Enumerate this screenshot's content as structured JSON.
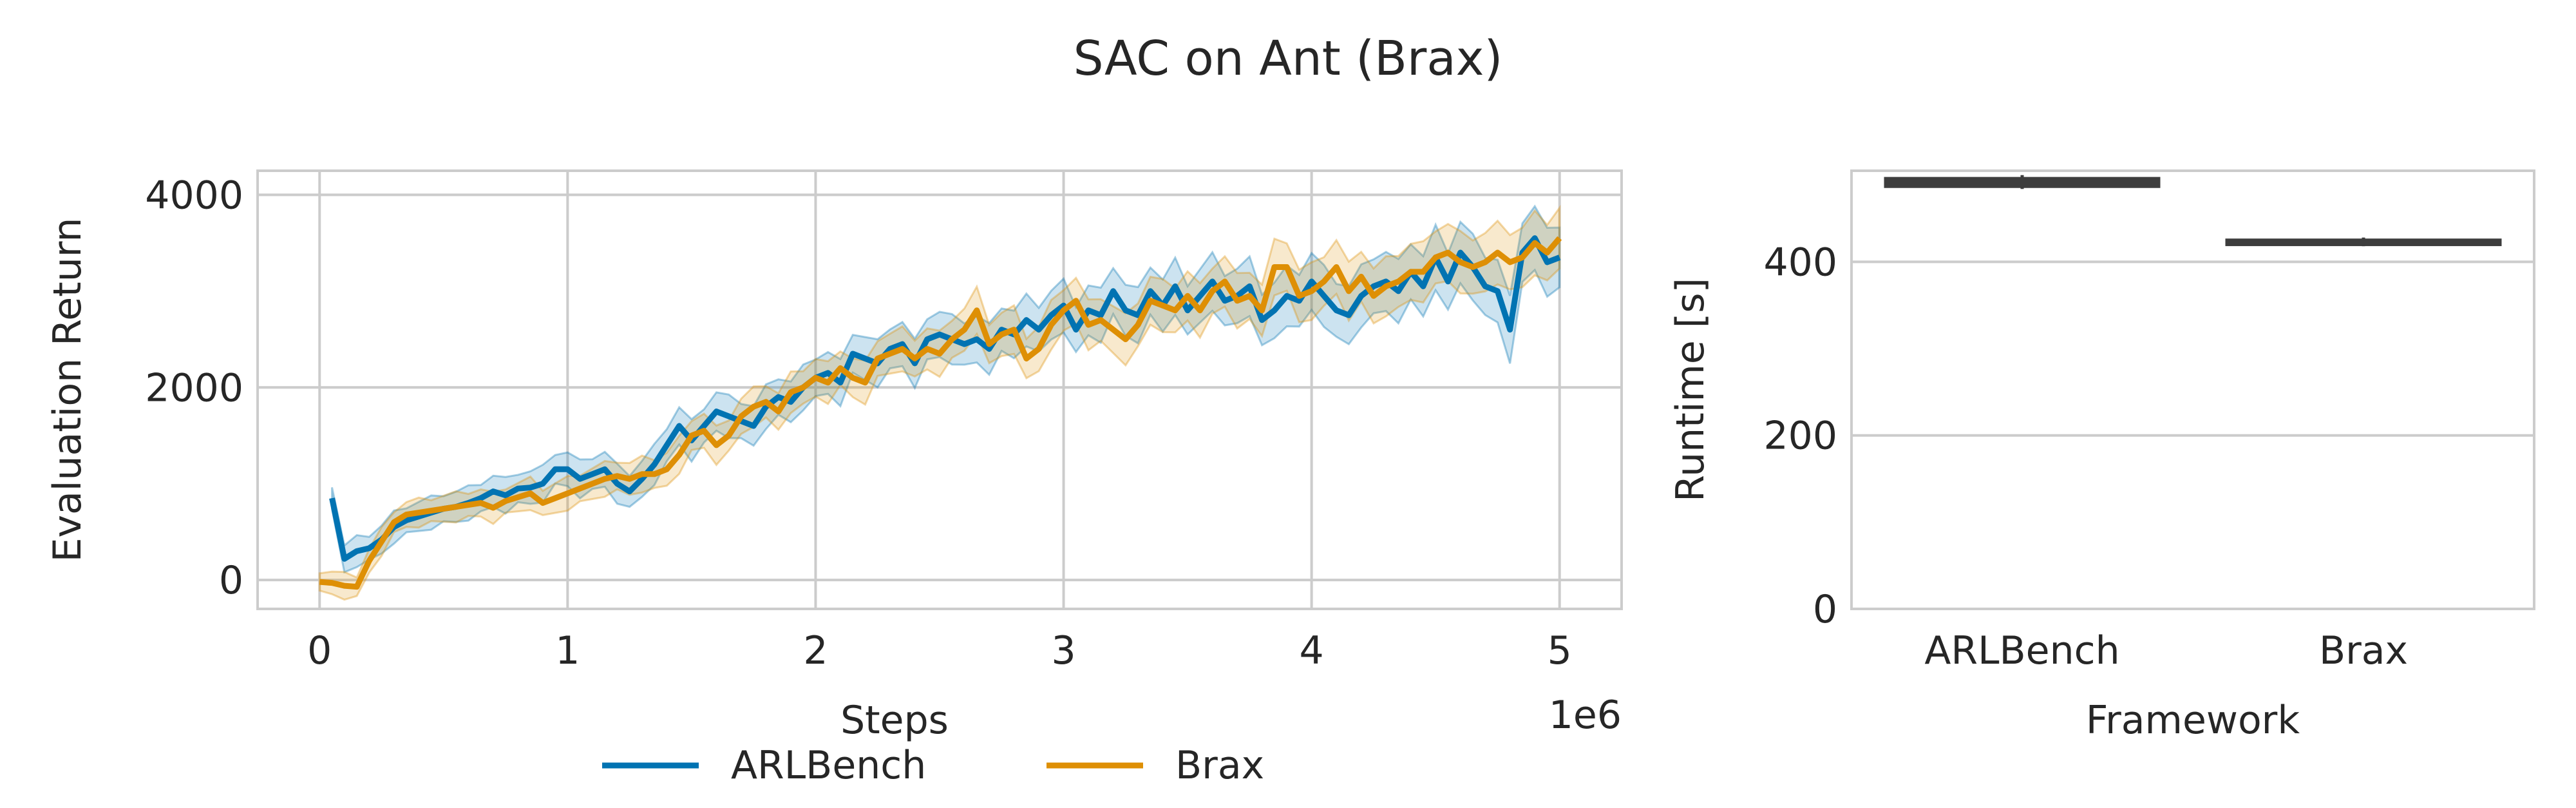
{
  "figure": {
    "title": "SAC on Ant (Brax)"
  },
  "chart_data": [
    {
      "type": "line",
      "title": "",
      "xlabel": "Steps",
      "ylabel": "Evaluation Return",
      "x_offset_label": "1e6",
      "xlim": [
        -0.25,
        5.25
      ],
      "ylim": [
        -300,
        4250
      ],
      "xticks": [
        0,
        1,
        2,
        3,
        4,
        5
      ],
      "xtick_labels": [
        "0",
        "1",
        "2",
        "3",
        "4",
        "5"
      ],
      "yticks": [
        0,
        2000,
        4000
      ],
      "ytick_labels": [
        "0",
        "2000",
        "4000"
      ],
      "grid": true,
      "legend": {
        "placement": "below",
        "entries": [
          "ARLBench",
          "Brax"
        ]
      },
      "series": [
        {
          "name": "ARLBench",
          "color": "#0173b2",
          "x": [
            0.05,
            0.1,
            0.15,
            0.2,
            0.25,
            0.3,
            0.35,
            0.4,
            0.45,
            0.5,
            0.55,
            0.6,
            0.65,
            0.7,
            0.75,
            0.8,
            0.85,
            0.9,
            0.95,
            1.0,
            1.05,
            1.1,
            1.15,
            1.2,
            1.25,
            1.3,
            1.35,
            1.4,
            1.45,
            1.5,
            1.55,
            1.6,
            1.65,
            1.7,
            1.75,
            1.8,
            1.85,
            1.9,
            1.95,
            2.0,
            2.05,
            2.1,
            2.15,
            2.2,
            2.25,
            2.3,
            2.35,
            2.4,
            2.45,
            2.5,
            2.55,
            2.6,
            2.65,
            2.7,
            2.75,
            2.8,
            2.85,
            2.9,
            2.95,
            3.0,
            3.05,
            3.1,
            3.15,
            3.2,
            3.25,
            3.3,
            3.35,
            3.4,
            3.45,
            3.5,
            3.55,
            3.6,
            3.65,
            3.7,
            3.75,
            3.8,
            3.85,
            3.9,
            3.95,
            4.0,
            4.05,
            4.1,
            4.15,
            4.2,
            4.25,
            4.3,
            4.35,
            4.4,
            4.45,
            4.5,
            4.55,
            4.6,
            4.65,
            4.7,
            4.75,
            4.8,
            4.85,
            4.9,
            4.95,
            5.0
          ],
          "y": [
            850,
            220,
            300,
            330,
            420,
            550,
            620,
            660,
            700,
            740,
            760,
            800,
            850,
            920,
            880,
            950,
            960,
            1000,
            1150,
            1150,
            1050,
            1100,
            1150,
            1000,
            920,
            1050,
            1200,
            1400,
            1600,
            1450,
            1600,
            1750,
            1700,
            1650,
            1600,
            1800,
            1900,
            1850,
            2000,
            2100,
            2150,
            2050,
            2350,
            2300,
            2250,
            2400,
            2450,
            2250,
            2500,
            2550,
            2500,
            2450,
            2500,
            2400,
            2600,
            2550,
            2700,
            2600,
            2750,
            2850,
            2600,
            2800,
            2750,
            3000,
            2800,
            2750,
            3000,
            2850,
            3050,
            2800,
            2950,
            3100,
            2900,
            2950,
            3050,
            2700,
            2800,
            2950,
            2900,
            3100,
            2950,
            2800,
            2750,
            2950,
            3050,
            3100,
            3000,
            3200,
            3050,
            3350,
            3100,
            3400,
            3250,
            3050,
            3000,
            2600,
            3400,
            3550,
            3300,
            3350
          ]
        },
        {
          "name": "Brax",
          "color": "#de8f05",
          "x": [
            0.0,
            0.05,
            0.1,
            0.15,
            0.2,
            0.25,
            0.3,
            0.35,
            0.4,
            0.45,
            0.5,
            0.55,
            0.6,
            0.65,
            0.7,
            0.75,
            0.8,
            0.85,
            0.9,
            0.95,
            1.0,
            1.05,
            1.1,
            1.15,
            1.2,
            1.25,
            1.3,
            1.35,
            1.4,
            1.45,
            1.5,
            1.55,
            1.6,
            1.65,
            1.7,
            1.75,
            1.8,
            1.85,
            1.9,
            1.95,
            2.0,
            2.05,
            2.1,
            2.15,
            2.2,
            2.25,
            2.3,
            2.35,
            2.4,
            2.45,
            2.5,
            2.55,
            2.6,
            2.65,
            2.7,
            2.75,
            2.8,
            2.85,
            2.9,
            2.95,
            3.0,
            3.05,
            3.1,
            3.15,
            3.2,
            3.25,
            3.3,
            3.35,
            3.4,
            3.45,
            3.5,
            3.55,
            3.6,
            3.65,
            3.7,
            3.75,
            3.8,
            3.85,
            3.9,
            3.95,
            4.0,
            4.05,
            4.1,
            4.15,
            4.2,
            4.25,
            4.3,
            4.35,
            4.4,
            4.45,
            4.5,
            4.55,
            4.6,
            4.65,
            4.7,
            4.75,
            4.8,
            4.85,
            4.9,
            4.95,
            5.0
          ],
          "y": [
            -20,
            -30,
            -60,
            -70,
            200,
            400,
            600,
            680,
            700,
            720,
            740,
            760,
            780,
            800,
            750,
            820,
            860,
            900,
            800,
            850,
            900,
            950,
            1000,
            1050,
            1080,
            1050,
            1100,
            1100,
            1150,
            1300,
            1500,
            1550,
            1400,
            1500,
            1700,
            1800,
            1850,
            1750,
            1950,
            2000,
            2100,
            2050,
            2200,
            2100,
            2050,
            2300,
            2350,
            2400,
            2300,
            2400,
            2350,
            2500,
            2600,
            2800,
            2450,
            2550,
            2600,
            2300,
            2400,
            2650,
            2800,
            2900,
            2650,
            2700,
            2600,
            2500,
            2650,
            2900,
            2850,
            2800,
            2950,
            2800,
            3000,
            3100,
            2900,
            2950,
            2800,
            3250,
            3250,
            2950,
            3000,
            3100,
            3250,
            3000,
            3150,
            2950,
            3050,
            3100,
            3200,
            3200,
            3350,
            3400,
            3300,
            3250,
            3300,
            3400,
            3300,
            3350,
            3500,
            3400,
            3550
          ]
        }
      ]
    },
    {
      "type": "box",
      "title": "",
      "xlabel": "Framework",
      "ylabel": "Runtime [s]",
      "categories": [
        "ARLBench",
        "Brax"
      ],
      "ylim": [
        0,
        505
      ],
      "yticks": [
        0,
        200,
        400
      ],
      "ytick_labels": [
        "0",
        "200",
        "400"
      ],
      "grid": true,
      "boxes": [
        {
          "label": "ARLBench",
          "min": 484,
          "q1": 487,
          "median": 492,
          "q3": 496,
          "max": 500
        },
        {
          "label": "Brax",
          "min": 418,
          "q1": 420,
          "median": 422,
          "q3": 425,
          "max": 428
        }
      ],
      "box_color": "#3d3d3d"
    }
  ]
}
